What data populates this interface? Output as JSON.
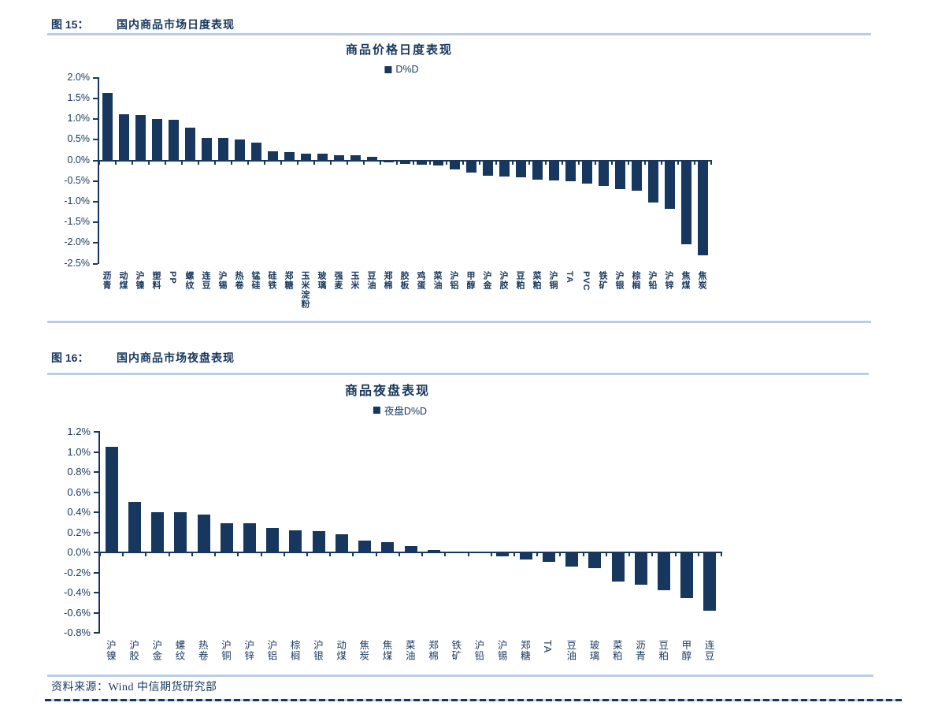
{
  "colors": {
    "navy": "#17375E",
    "light_blue_line": "#B9CDE5",
    "background": "#FFFFFF"
  },
  "figure15": {
    "label": "图 15：",
    "title": "国内商品市场日度表现"
  },
  "figure16": {
    "label": "图 16：",
    "title": "国内商品市场夜盘表现"
  },
  "source_line": "资料来源：Wind 中信期货研究部",
  "chart_data": [
    {
      "type": "bar",
      "title": "商品价格日度表现",
      "legend": [
        "D%D"
      ],
      "legend_position": "top",
      "grid": false,
      "unit": "%",
      "ylim": [
        -2.5,
        2.0
      ],
      "ytick_step": 0.5,
      "ytick_labels": [
        "2.0%",
        "1.5%",
        "1.0%",
        "0.5%",
        "0.0%",
        "-0.5%",
        "-1.0%",
        "-1.5%",
        "-2.0%",
        "-2.5%"
      ],
      "categories": [
        "沥青",
        "动煤",
        "沪镍",
        "塑料",
        "PP",
        "螺纹",
        "连豆",
        "沪锡",
        "热卷",
        "锰硅",
        "硅铁",
        "郑糖",
        "玉米淀粉",
        "玻璃",
        "强麦",
        "玉米",
        "豆油",
        "郑棉",
        "胶板",
        "鸡蛋",
        "菜油",
        "沪铝",
        "甲醇",
        "沪金",
        "沪胶",
        "豆粕",
        "菜粕",
        "沪铜",
        "TA",
        "PVC",
        "铁矿",
        "沪银",
        "棕榈",
        "沪铅",
        "沪锌",
        "焦煤",
        "焦炭"
      ],
      "values": [
        1.64,
        1.12,
        1.09,
        1.0,
        0.99,
        0.8,
        0.55,
        0.55,
        0.51,
        0.42,
        0.21,
        0.2,
        0.17,
        0.16,
        0.13,
        0.13,
        0.08,
        -0.03,
        -0.06,
        -0.08,
        -0.11,
        -0.2,
        -0.28,
        -0.35,
        -0.38,
        -0.4,
        -0.44,
        -0.46,
        -0.48,
        -0.55,
        -0.61,
        -0.68,
        -0.72,
        -1.01,
        -1.16,
        -2.01,
        -2.29
      ]
    },
    {
      "type": "bar",
      "title": "商品夜盘表现",
      "legend": [
        "夜盘D%D"
      ],
      "legend_position": "top",
      "grid": false,
      "unit": "%",
      "ylim": [
        -0.8,
        1.2
      ],
      "ytick_step": 0.2,
      "ytick_labels": [
        "1.2%",
        "1.0%",
        "0.8%",
        "0.6%",
        "0.4%",
        "0.2%",
        "0.0%",
        "-0.2%",
        "-0.4%",
        "-0.6%",
        "-0.8%"
      ],
      "categories": [
        "沪镍",
        "沪胶",
        "沪金",
        "螺纹",
        "热卷",
        "沪铜",
        "沪锌",
        "沪铝",
        "棕榈",
        "沪银",
        "动煤",
        "焦炭",
        "焦煤",
        "菜油",
        "郑棉",
        "铁矿",
        "沪铅",
        "沪锡",
        "郑糖",
        "TA",
        "豆油",
        "玻璃",
        "菜粕",
        "沥青",
        "豆粕",
        "甲醇",
        "连豆"
      ],
      "values": [
        1.05,
        0.5,
        0.4,
        0.4,
        0.38,
        0.29,
        0.29,
        0.24,
        0.22,
        0.21,
        0.18,
        0.12,
        0.1,
        0.06,
        0.02,
        0.0,
        0.0,
        -0.03,
        -0.06,
        -0.09,
        -0.13,
        -0.15,
        -0.28,
        -0.31,
        -0.37,
        -0.45,
        -0.57
      ]
    }
  ]
}
